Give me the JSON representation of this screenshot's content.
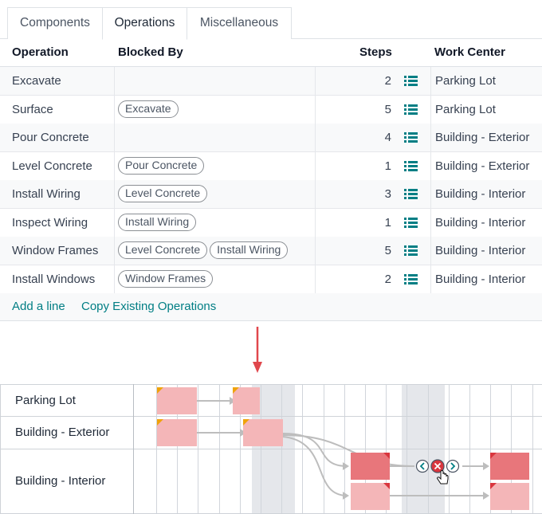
{
  "tabs": [
    {
      "label": "Components"
    },
    {
      "label": "Operations"
    },
    {
      "label": "Miscellaneous"
    }
  ],
  "columns": {
    "operation": "Operation",
    "blocked_by": "Blocked By",
    "steps": "Steps",
    "work_center": "Work Center"
  },
  "rows": [
    {
      "operation": "Excavate",
      "blocked_by": [],
      "steps": "2",
      "work_center": "Parking Lot"
    },
    {
      "operation": "Surface",
      "blocked_by": [
        "Excavate"
      ],
      "steps": "5",
      "work_center": "Parking Lot"
    },
    {
      "operation": "Pour Concrete",
      "blocked_by": [],
      "steps": "4",
      "work_center": "Building - Exterior"
    },
    {
      "operation": "Level Concrete",
      "blocked_by": [
        "Pour Concrete"
      ],
      "steps": "1",
      "work_center": "Building - Exterior"
    },
    {
      "operation": "Install Wiring",
      "blocked_by": [
        "Level Concrete"
      ],
      "steps": "3",
      "work_center": "Building - Interior"
    },
    {
      "operation": "Inspect Wiring",
      "blocked_by": [
        "Install Wiring"
      ],
      "steps": "1",
      "work_center": "Building - Interior"
    },
    {
      "operation": "Window Frames",
      "blocked_by": [
        "Level Concrete",
        "Install Wiring"
      ],
      "steps": "5",
      "work_center": "Building - Interior"
    },
    {
      "operation": "Install Windows",
      "blocked_by": [
        "Window Frames"
      ],
      "steps": "2",
      "work_center": "Building - Interior"
    }
  ],
  "footer": {
    "add_line": "Add a line",
    "copy_ops": "Copy Existing Operations"
  },
  "gantt": {
    "rows": [
      "Parking Lot",
      "Building - Exterior",
      "Building - Interior"
    ]
  },
  "colors": {
    "accent": "#017e84",
    "arrow": "#e0474c",
    "bar_light": "#f4b6b8",
    "bar_dark": "#e8767b",
    "corner_warning": "#f0a30a",
    "corner_danger": "#d9363e"
  }
}
